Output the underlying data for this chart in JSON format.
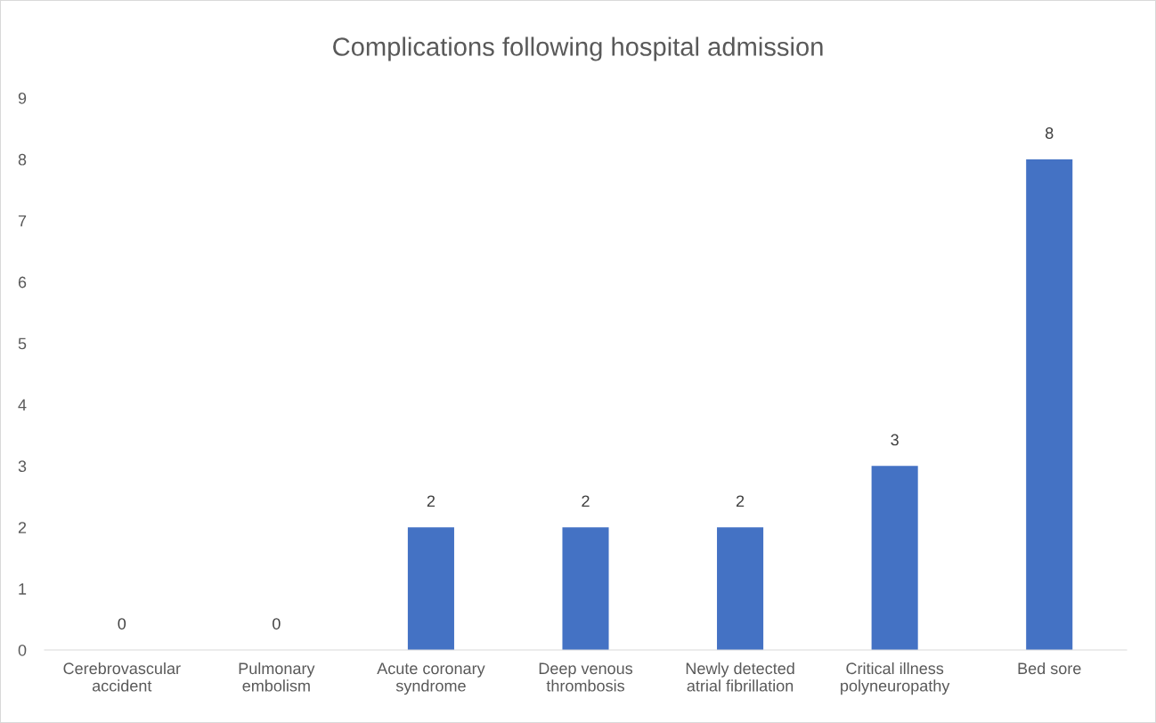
{
  "chart_data": {
    "type": "bar",
    "title": "Complications following hospital admission",
    "categories": [
      "Cerebrovascular\naccident",
      "Pulmonary\nembolism",
      "Acute coronary\nsyndrome",
      "Deep venous\nthrombosis",
      "Newly detected\natrial fibrillation",
      "Critical illness\npolyneuropathy",
      "Bed sore"
    ],
    "values": [
      0,
      0,
      2,
      2,
      2,
      3,
      8
    ],
    "color": "#4472c4",
    "ylim": [
      0,
      9
    ],
    "yticks": [
      0,
      1,
      2,
      3,
      4,
      5,
      6,
      7,
      8,
      9
    ],
    "grid": false,
    "data_labels": true
  }
}
